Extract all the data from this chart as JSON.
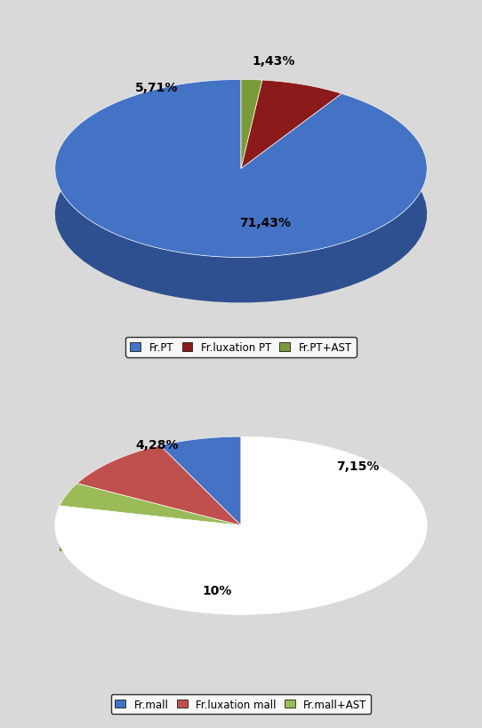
{
  "chart1": {
    "values": [
      71.43,
      5.71,
      1.43
    ],
    "labels": [
      "71,43%",
      "5,71%",
      "1,43%"
    ],
    "colors_top": [
      "#4472C4",
      "#8B1A1A",
      "#7B9B3A"
    ],
    "colors_side": [
      "#2E5090",
      "#6B1010",
      "#5B7B2A"
    ],
    "legend_labels": [
      "Fr.PT",
      "Fr.luxation PT",
      "Fr.PT+AST"
    ],
    "startangle": 90
  },
  "chart2": {
    "values": [
      7.15,
      10.0,
      4.28,
      78.57
    ],
    "labels": [
      "7,15%",
      "10%",
      "4,28%"
    ],
    "colors_top": [
      "#4472C4",
      "#C0504D",
      "#9BBB59",
      "white"
    ],
    "colors_side": [
      "#2E5090",
      "#8B2020",
      "#6B8B29",
      "white"
    ],
    "legend_labels": [
      "Fr.mall",
      "Fr.luxation mall",
      "Fr.mall+AST"
    ],
    "startangle": 90
  },
  "bg_color": "#d9d9d9",
  "box_facecolor": "white"
}
